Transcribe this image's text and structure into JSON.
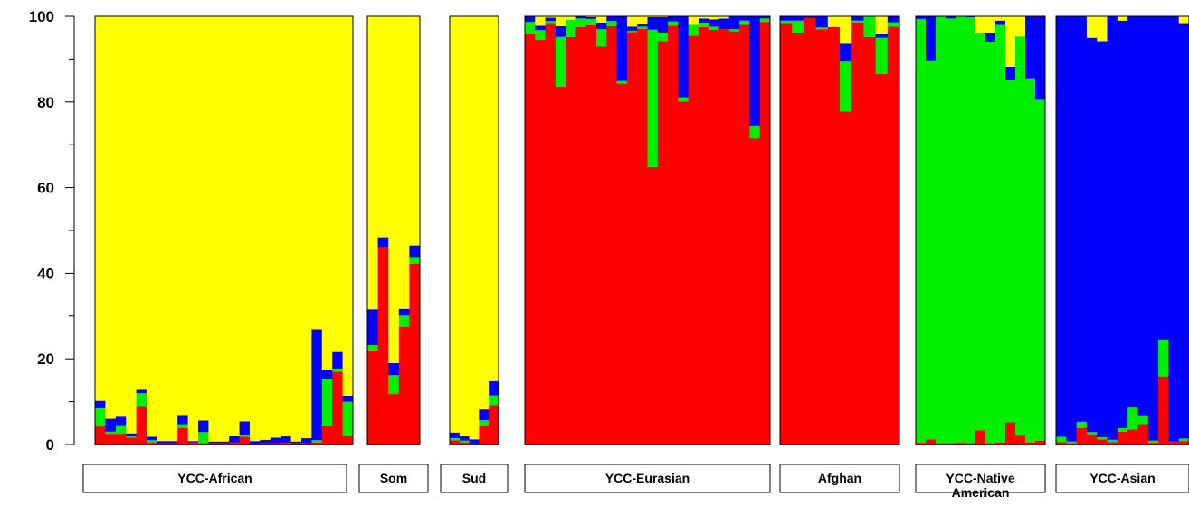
{
  "chart_data": {
    "type": "bar",
    "stacked": true,
    "ylim": [
      0,
      100
    ],
    "yticks": [
      0,
      20,
      40,
      60,
      80,
      100
    ],
    "colors": {
      "red": "#ff0000",
      "green": "#00ee00",
      "blue": "#0000ff",
      "yellow": "#ffff00"
    },
    "stack_order": [
      "red",
      "green",
      "blue",
      "yellow"
    ],
    "groups": [
      {
        "label_lines": [
          "YCC-African"
        ],
        "samples": [
          [
            4.2,
            4.4,
            1.6
          ],
          [
            2.5,
            0.5,
            3.0
          ],
          [
            2.5,
            2.0,
            2.2
          ],
          [
            1.6,
            0.4,
            0.6
          ],
          [
            9.0,
            3.0,
            0.8
          ],
          [
            0.5,
            0.5,
            0.8
          ],
          [
            0.3,
            0.0,
            0.5
          ],
          [
            0.3,
            0.0,
            0.5
          ],
          [
            3.8,
            0.9,
            2.2
          ],
          [
            0.5,
            0.0,
            0.3
          ],
          [
            0.3,
            2.6,
            2.7
          ],
          [
            0.3,
            0.0,
            0.4
          ],
          [
            0.3,
            0.0,
            0.4
          ],
          [
            0.5,
            0.0,
            1.5
          ],
          [
            1.8,
            0.5,
            3.1
          ],
          [
            0.2,
            0.0,
            0.6
          ],
          [
            0.3,
            0.0,
            0.8
          ],
          [
            0.3,
            0.0,
            1.3
          ],
          [
            0.4,
            0.0,
            1.5
          ],
          [
            0.3,
            0.0,
            0.4
          ],
          [
            0.3,
            0.0,
            1.2
          ],
          [
            0.5,
            0.5,
            25.9
          ],
          [
            4.3,
            11.0,
            2.0
          ],
          [
            17.0,
            0.7,
            3.9
          ],
          [
            2.0,
            8.0,
            1.4
          ]
        ]
      },
      {
        "label_lines": [
          "Som"
        ],
        "samples": [
          [
            22.0,
            1.2,
            8.4
          ],
          [
            46.2,
            0.0,
            2.2
          ],
          [
            11.8,
            4.4,
            2.8
          ],
          [
            27.5,
            2.6,
            1.6
          ],
          [
            42.2,
            1.6,
            2.7
          ]
        ]
      },
      {
        "label_lines": [
          "Sud"
        ],
        "samples": [
          [
            1.0,
            0.5,
            1.3
          ],
          [
            0.5,
            0.4,
            1.0
          ],
          [
            0.2,
            0.0,
            1.0
          ],
          [
            4.5,
            1.2,
            2.5
          ],
          [
            9.2,
            2.3,
            3.3
          ]
        ]
      },
      {
        "label_lines": [
          "YCC-Eurasian"
        ],
        "samples": [
          [
            95.8,
            2.9,
            1.3
          ],
          [
            94.5,
            2.3,
            1.0
          ],
          [
            98.2,
            0.7,
            0.8
          ],
          [
            83.6,
            11.6,
            2.5
          ],
          [
            95.2,
            4.0,
            0.0
          ],
          [
            97.5,
            2.0,
            0.5
          ],
          [
            97.9,
            1.5,
            0.4
          ],
          [
            93.0,
            4.0,
            1.4
          ],
          [
            97.7,
            1.2,
            1.0
          ],
          [
            84.3,
            0.6,
            15.0
          ],
          [
            96.3,
            0.3,
            1.0
          ],
          [
            97.1,
            0.5,
            0.5
          ],
          [
            64.8,
            32.1,
            2.9
          ],
          [
            94.2,
            2.0,
            3.6
          ],
          [
            97.8,
            1.0,
            1.3
          ],
          [
            80.1,
            1.0,
            18.8
          ],
          [
            95.5,
            2.5,
            0.0
          ],
          [
            97.5,
            1.0,
            1.0
          ],
          [
            96.9,
            0.7,
            1.7
          ],
          [
            97.0,
            0.0,
            2.5
          ],
          [
            96.5,
            0.5,
            2.9
          ],
          [
            98.0,
            1.0,
            1.0
          ],
          [
            71.5,
            3.0,
            25.5
          ],
          [
            98.7,
            0.8,
            0.5
          ]
        ]
      },
      {
        "label_lines": [
          "Afghan"
        ],
        "samples": [
          [
            98.2,
            0.8,
            1.0
          ],
          [
            96.0,
            3.0,
            1.0
          ],
          [
            99.6,
            0.0,
            0.4
          ],
          [
            97.0,
            0.4,
            2.6
          ],
          [
            97.5,
            0.0,
            0.0
          ],
          [
            77.8,
            11.6,
            4.2
          ],
          [
            98.5,
            0.5,
            1.0
          ],
          [
            95.2,
            4.8,
            0.0
          ],
          [
            86.5,
            8.5,
            0.8
          ],
          [
            97.6,
            1.0,
            1.4
          ]
        ]
      },
      {
        "label_lines": [
          "YCC-Native",
          "American"
        ],
        "samples": [
          [
            0.4,
            99.0,
            0.6
          ],
          [
            1.2,
            88.5,
            10.3
          ],
          [
            0.3,
            99.7,
            0.0
          ],
          [
            0.3,
            99.2,
            0.5
          ],
          [
            0.4,
            99.6,
            0.0
          ],
          [
            0.3,
            99.5,
            0.2
          ],
          [
            3.3,
            92.7,
            0.0
          ],
          [
            0.3,
            93.8,
            1.9
          ],
          [
            0.5,
            97.5,
            1.0
          ],
          [
            5.2,
            80.0,
            3.0
          ],
          [
            2.3,
            93.0,
            0.0
          ],
          [
            0.5,
            85.0,
            14.5
          ],
          [
            0.9,
            79.6,
            19.5
          ]
        ]
      },
      {
        "label_lines": [
          "YCC-Asian"
        ],
        "samples": [
          [
            0.6,
            1.2,
            98.2
          ],
          [
            0.3,
            0.4,
            99.3
          ],
          [
            3.8,
            1.5,
            94.7
          ],
          [
            2.4,
            0.5,
            92.1
          ],
          [
            1.2,
            0.5,
            92.5
          ],
          [
            0.6,
            0.5,
            98.9
          ],
          [
            3.0,
            0.8,
            95.2
          ],
          [
            3.5,
            5.3,
            91.2
          ],
          [
            4.8,
            2.0,
            93.2
          ],
          [
            0.4,
            0.5,
            99.1
          ],
          [
            15.9,
            8.6,
            75.5
          ],
          [
            0.7,
            0.0,
            99.3
          ],
          [
            0.8,
            0.6,
            96.8
          ]
        ]
      }
    ]
  }
}
